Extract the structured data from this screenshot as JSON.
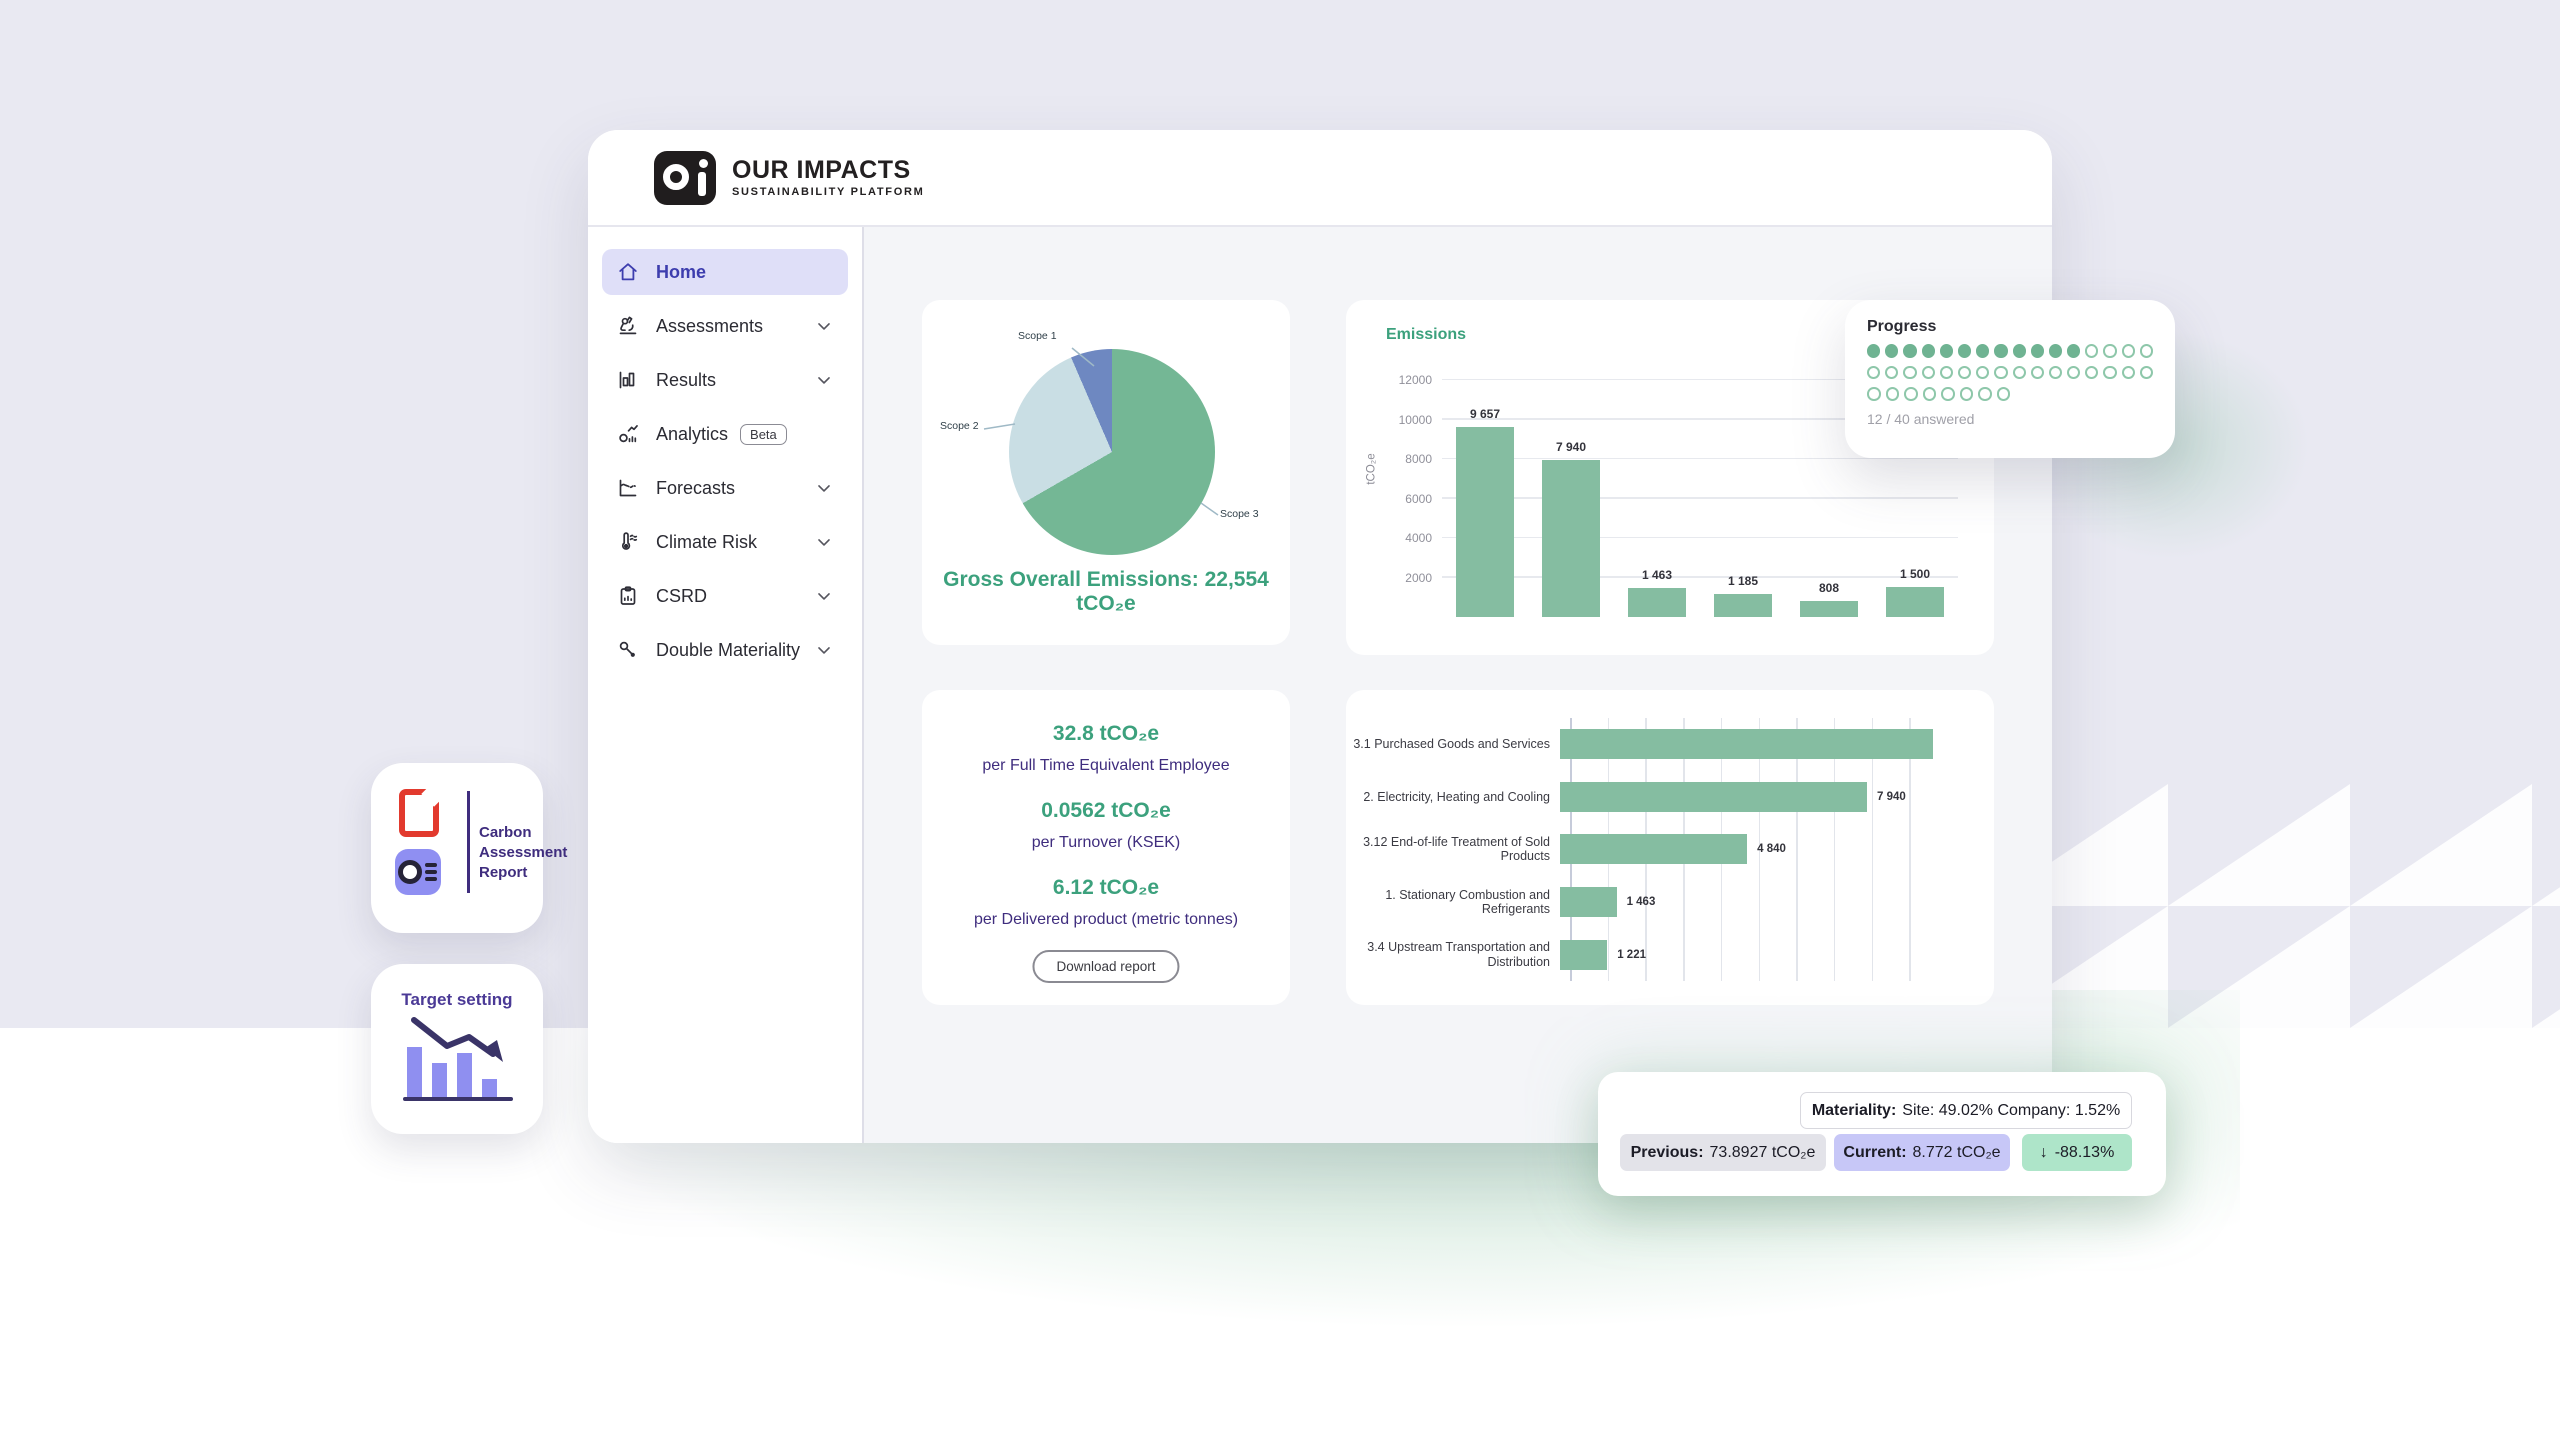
{
  "logo": {
    "title": "OUR IMPACTS",
    "subtitle": "SUSTAINABILITY PLATFORM"
  },
  "sidebar": {
    "items": [
      {
        "label": "Home",
        "icon": "home-icon",
        "active": true
      },
      {
        "label": "Assessments",
        "icon": "microscope-icon",
        "chevron": true
      },
      {
        "label": "Results",
        "icon": "bar-chart-icon",
        "chevron": true
      },
      {
        "label": "Analytics",
        "icon": "analytics-icon",
        "badge": "Beta"
      },
      {
        "label": "Forecasts",
        "icon": "forecast-line-icon",
        "chevron": true
      },
      {
        "label": "Climate Risk",
        "icon": "thermometer-icon",
        "chevron": true
      },
      {
        "label": "CSRD",
        "icon": "clipboard-icon",
        "chevron": true
      },
      {
        "label": "Double Materiality",
        "icon": "key-icon",
        "chevron": true
      }
    ]
  },
  "pie_card": {
    "caption": "Gross Overall Emissions: 22,554 tCO₂e"
  },
  "metrics_card": {
    "items": [
      {
        "value": "32.8 tCO₂e",
        "label": "per Full Time Equivalent Employee"
      },
      {
        "value": "0.0562 tCO₂e",
        "label": "per Turnover (KSEK)"
      },
      {
        "value": "6.12 tCO₂e",
        "label": "per Delivered product (metric tonnes)"
      }
    ],
    "button_label": "Download report"
  },
  "progress": {
    "title": "Progress",
    "rows": [
      16,
      16,
      8
    ],
    "answered": 12,
    "total": 40,
    "caption": "12 / 40 answered"
  },
  "tooltip": {
    "materiality_label": "Materiality:",
    "materiality_value": "Site: 49.02% Company: 1.52%",
    "previous_label": "Previous:",
    "previous_value": "73.8927 tCO₂e",
    "current_label": "Current:",
    "current_value": "8.772 tCO₂e",
    "change_arrow": "↓",
    "change_value": "-88.13%"
  },
  "floating": {
    "report": {
      "line1": "Carbon",
      "line2": "Assessment",
      "line3": "Report"
    },
    "target": {
      "label": "Target setting"
    }
  },
  "colors": {
    "accent_green": "#3ca17d",
    "bar_green": "#85bda1",
    "pie_green": "#74b795",
    "pie_light_blue": "#c9dee4",
    "pie_indigo": "#6e88c1",
    "deep_purple": "#3f2d7e",
    "active_indigo": "#3d3dae",
    "pill_gray": "#e3e3e9",
    "pill_lavender": "#c7c7f7",
    "pill_green": "#aee5c9"
  },
  "chart_data": [
    {
      "id": "scope-pie",
      "type": "pie",
      "title": "Gross Overall Emissions",
      "slices": [
        {
          "label": "Scope 3",
          "pct": 66.7,
          "value_est_tco2e": 15040,
          "color": "#74b795"
        },
        {
          "label": "Scope 2",
          "pct": 26.8,
          "value_est_tco2e": 6045,
          "color": "#c9dee4"
        },
        {
          "label": "Scope 1",
          "pct": 6.5,
          "value_est_tco2e": 1469,
          "color": "#6e88c1"
        }
      ],
      "total_tco2e": 22554,
      "start_angle_deg": 0,
      "legend_position": "callout-labels"
    },
    {
      "id": "emissions-by-scope",
      "type": "bar",
      "title": "Emissions",
      "ylabel": "tCO₂e",
      "ylim": [
        0,
        12000
      ],
      "yticks": [
        2000,
        4000,
        6000,
        8000,
        10000,
        12000
      ],
      "grid": true,
      "values": [
        9657,
        7940,
        1463,
        1185,
        808,
        1500
      ],
      "value_labels": [
        "9 657",
        "7 940",
        "1 463",
        "1 185",
        "808",
        "1 500"
      ],
      "x_tick_labels_visible": false,
      "color": "#85bda1"
    },
    {
      "id": "emissions-by-category",
      "type": "bar",
      "orientation": "horizontal",
      "xlim": [
        0,
        10500
      ],
      "gridline_step": 1000,
      "grid": true,
      "categories": [
        "3.1 Purchased Goods and Services",
        "2. Electricity, Heating and Cooling",
        "3.12 End-of-life Treatment of Sold Products",
        "1. Stationary Combustion and Refrigerants",
        "3.4 Upstream Transportation and Distribution"
      ],
      "values": [
        9657,
        7940,
        4840,
        1463,
        1221
      ],
      "value_labels": [
        "",
        "7 940",
        "4 840",
        "1 463",
        "1 221"
      ],
      "color": "#85bda1"
    }
  ]
}
